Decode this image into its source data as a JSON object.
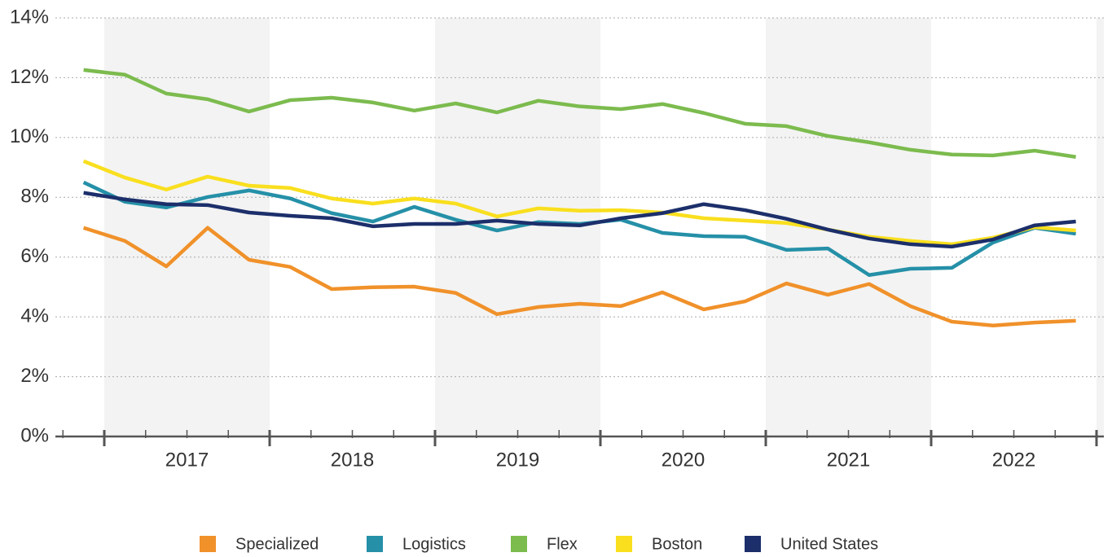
{
  "chart_data": {
    "type": "line",
    "year_labels": [
      "2017",
      "2018",
      "2019",
      "2020",
      "2021",
      "2022"
    ],
    "ylim": [
      0,
      14
    ],
    "yticks": [
      {
        "value": 0,
        "label": "0%"
      },
      {
        "value": 2,
        "label": "2%"
      },
      {
        "value": 4,
        "label": "4%"
      },
      {
        "value": 6,
        "label": "6%"
      },
      {
        "value": 8,
        "label": "8%"
      },
      {
        "value": 10,
        "label": "10%"
      },
      {
        "value": 12,
        "label": "12%"
      },
      {
        "value": 14,
        "label": "14%"
      }
    ],
    "grid": true,
    "legend": "bottom",
    "series": [
      {
        "name": "Specialized",
        "color": "#f0912a",
        "values": [
          6.98,
          6.54,
          5.69,
          6.98,
          5.91,
          5.67,
          4.93,
          4.99,
          5.01,
          4.8,
          4.09,
          4.33,
          4.44,
          4.36,
          4.82,
          4.25,
          4.52,
          5.12,
          4.74,
          5.1,
          4.36,
          3.84,
          3.71,
          3.81,
          3.87
        ]
      },
      {
        "name": "Logistics",
        "color": "#2590a8",
        "values": [
          8.5,
          7.85,
          7.66,
          8.01,
          8.23,
          7.96,
          7.47,
          7.19,
          7.68,
          7.25,
          6.89,
          7.17,
          7.11,
          7.25,
          6.81,
          6.7,
          6.68,
          6.24,
          6.29,
          5.4,
          5.61,
          5.64,
          6.49,
          6.98,
          6.78
        ]
      },
      {
        "name": "Flex",
        "color": "#7cbb4e",
        "values": [
          12.26,
          12.1,
          11.47,
          11.28,
          10.87,
          11.25,
          11.33,
          11.17,
          10.9,
          11.14,
          10.84,
          11.23,
          11.04,
          10.95,
          11.12,
          10.82,
          10.46,
          10.38,
          10.05,
          9.84,
          9.59,
          9.43,
          9.4,
          9.56,
          9.35
        ]
      },
      {
        "name": "Boston",
        "color": "#f9df1e",
        "values": [
          9.21,
          8.66,
          8.26,
          8.69,
          8.39,
          8.31,
          7.96,
          7.79,
          7.96,
          7.79,
          7.36,
          7.63,
          7.55,
          7.57,
          7.49,
          7.3,
          7.22,
          7.14,
          6.92,
          6.68,
          6.54,
          6.43,
          6.65,
          7.0,
          6.89
        ]
      },
      {
        "name": "United States",
        "color": "#1c2f6b",
        "values": [
          8.15,
          7.93,
          7.77,
          7.74,
          7.49,
          7.38,
          7.3,
          7.03,
          7.11,
          7.11,
          7.22,
          7.11,
          7.06,
          7.3,
          7.47,
          7.77,
          7.57,
          7.28,
          6.92,
          6.62,
          6.43,
          6.35,
          6.59,
          7.06,
          7.19
        ]
      }
    ]
  }
}
